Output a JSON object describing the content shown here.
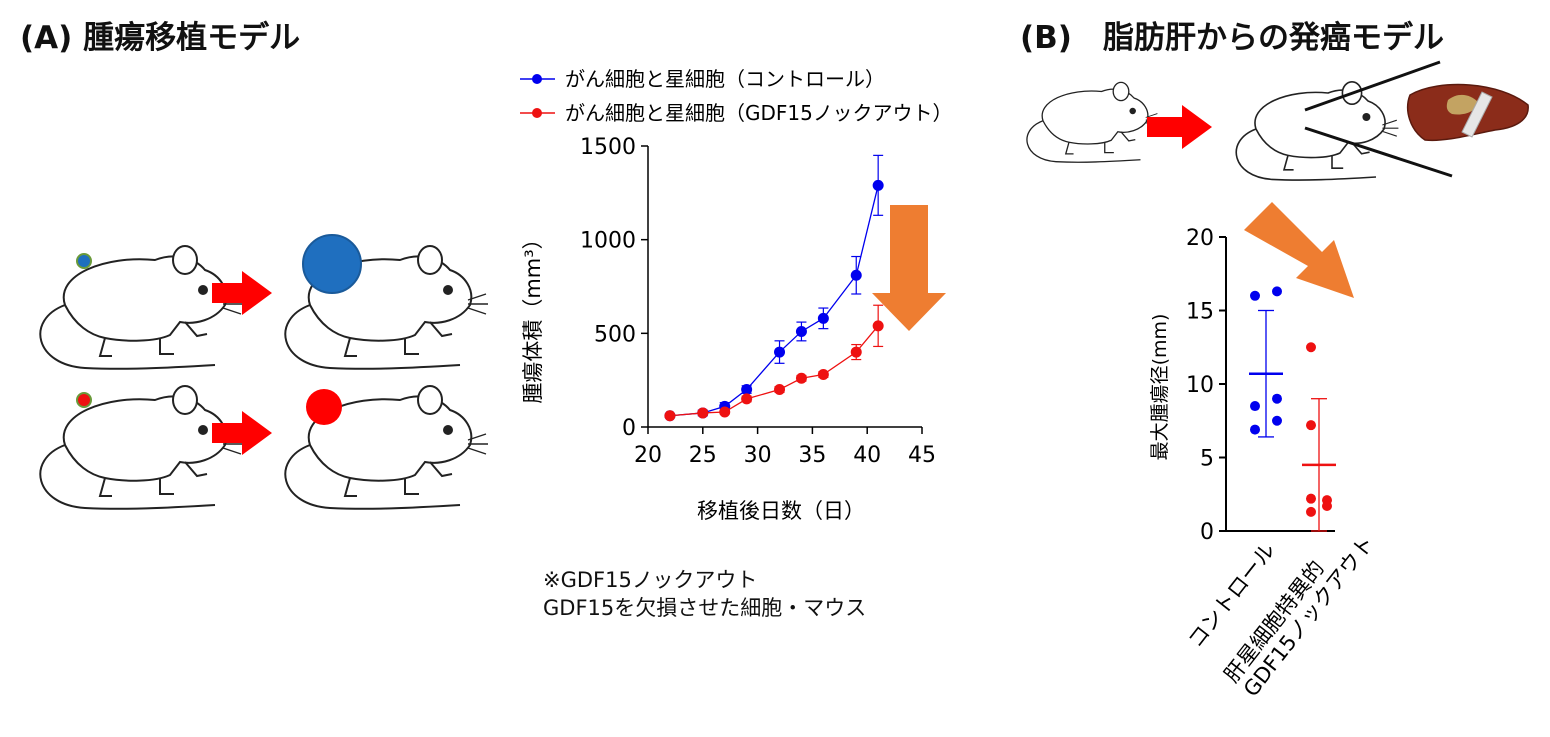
{
  "panel_a": {
    "title": "(A) 腫瘍移植モデル",
    "note_line1": "※GDF15ノックアウト",
    "note_line2": "GDF15を欠損させた細胞・マウス"
  },
  "panel_b": {
    "title": "(B)　脂肪肝からの発癌モデル"
  },
  "colors": {
    "control": "#0000ee",
    "knockout": "#ee1111",
    "accent_arrow": "#ee7d31",
    "process_arrow": "#ff0000",
    "tumor_large": "#1f6fbf",
    "tumor_small": "#ff0000"
  },
  "chart_data": [
    {
      "type": "line",
      "xlabel": "移植後日数（日）",
      "ylabel": "腫瘍体積（mm³）",
      "xlim": [
        20,
        45
      ],
      "ylim": [
        0,
        1500
      ],
      "xticks": [
        20,
        25,
        30,
        35,
        40,
        45
      ],
      "yticks": [
        0,
        500,
        1000,
        1500
      ],
      "legend_position": "top",
      "series": [
        {
          "name": "がん細胞と星細胞（コントロール）",
          "x": [
            22,
            25,
            27,
            29,
            32,
            34,
            36,
            39,
            41
          ],
          "y": [
            60,
            75,
            110,
            200,
            400,
            510,
            580,
            810,
            1290
          ],
          "err": [
            0,
            15,
            20,
            20,
            60,
            50,
            55,
            100,
            160
          ]
        },
        {
          "name": "がん細胞と星細胞（GDF15ノックアウト）",
          "x": [
            22,
            25,
            27,
            29,
            32,
            34,
            36,
            39,
            41
          ],
          "y": [
            60,
            75,
            80,
            150,
            200,
            260,
            280,
            400,
            540
          ],
          "err": [
            0,
            10,
            10,
            15,
            15,
            15,
            15,
            40,
            110
          ]
        }
      ]
    },
    {
      "type": "scatter",
      "ylabel": "最大腫瘍径(mm)",
      "ylim": [
        0,
        20
      ],
      "yticks": [
        0,
        5,
        10,
        15,
        20
      ],
      "categories": [
        "コントロール",
        "肝星細胞特異的",
        "GDF15ノックアウト"
      ],
      "groups": [
        {
          "label": "コントロール",
          "values": [
            16.0,
            16.3,
            8.5,
            9.0,
            7.5,
            6.9
          ],
          "mean": 10.7,
          "sd_low": 6.4,
          "sd_high": 15.0
        },
        {
          "label_line1": "肝星細胞特異的",
          "label_line2": "GDF15ノックアウト",
          "values": [
            12.5,
            7.2,
            2.2,
            2.1,
            1.7,
            1.3
          ],
          "mean": 4.5,
          "sd_low": 0.0,
          "sd_high": 9.0
        }
      ]
    }
  ]
}
